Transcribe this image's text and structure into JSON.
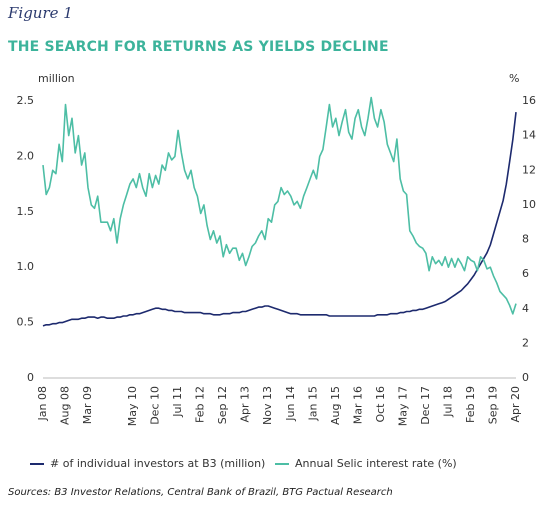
{
  "figure_label": "Figure 1",
  "chart_data": {
    "type": "line",
    "title": "THE SEARCH FOR RETURNS AS YIELDS DECLINE",
    "ylabel": "million",
    "y2label": "%",
    "source": "Sources: B3 Investor Relations, Central Bank of Brazil, BTG Pactual Research",
    "legend": "bottom",
    "categories": [
      "Jan 08",
      null,
      null,
      null,
      null,
      null,
      null,
      "Aug 08",
      null,
      null,
      null,
      null,
      null,
      null,
      "Mar 09",
      null,
      null,
      null,
      null,
      null,
      null,
      null,
      null,
      null,
      null,
      null,
      null,
      null,
      "May 10",
      null,
      null,
      null,
      null,
      null,
      null,
      "Dec 10",
      null,
      null,
      null,
      null,
      null,
      null,
      "Jul 11",
      null,
      null,
      null,
      null,
      null,
      null,
      "Feb 12",
      null,
      null,
      null,
      null,
      null,
      null,
      "Sep 12",
      null,
      null,
      null,
      null,
      null,
      null,
      "Apr 13",
      null,
      null,
      null,
      null,
      null,
      null,
      "Nov 13",
      null,
      null,
      null,
      null,
      null,
      null,
      "Jun 14",
      null,
      null,
      null,
      null,
      null,
      null,
      "Jan 15",
      null,
      null,
      null,
      null,
      null,
      null,
      "Aug 15",
      null,
      null,
      null,
      null,
      null,
      null,
      "Mar 16",
      null,
      null,
      null,
      null,
      null,
      null,
      "Oct 16",
      null,
      null,
      null,
      null,
      null,
      null,
      "May 17",
      null,
      null,
      null,
      null,
      null,
      null,
      "Dec 17",
      null,
      null,
      null,
      null,
      null,
      null,
      "Jul 18",
      null,
      null,
      null,
      null,
      null,
      null,
      "Feb 19",
      null,
      null,
      null,
      null,
      null,
      null,
      "Sep 19",
      null,
      null,
      null,
      null,
      null,
      null,
      "Apr 20"
    ],
    "ylim": [
      0,
      2.5
    ],
    "yticks": [
      0,
      0.5,
      {
        "value": 1,
        "label": "1.0"
      },
      1.5,
      {
        "value": 2,
        "label": "2.0"
      },
      2.5
    ],
    "y2lim": [
      0,
      16
    ],
    "y2ticks": [
      0,
      2,
      4,
      6,
      8,
      10,
      12,
      14,
      16
    ],
    "series": [
      {
        "name": "# of individual investors at B3 (million)",
        "color": "#1d2a6e",
        "axis": "y",
        "values": [
          0.47,
          0.48,
          0.48,
          0.49,
          0.49,
          0.5,
          0.5,
          0.51,
          0.52,
          0.53,
          0.53,
          0.53,
          0.54,
          0.54,
          0.55,
          0.55,
          0.55,
          0.54,
          0.55,
          0.55,
          0.54,
          0.54,
          0.54,
          0.55,
          0.55,
          0.56,
          0.56,
          0.57,
          0.57,
          0.58,
          0.58,
          0.59,
          0.6,
          0.61,
          0.62,
          0.63,
          0.63,
          0.62,
          0.62,
          0.61,
          0.61,
          0.6,
          0.6,
          0.6,
          0.59,
          0.59,
          0.59,
          0.59,
          0.59,
          0.59,
          0.58,
          0.58,
          0.58,
          0.57,
          0.57,
          0.57,
          0.58,
          0.58,
          0.58,
          0.59,
          0.59,
          0.59,
          0.6,
          0.6,
          0.61,
          0.62,
          0.63,
          0.64,
          0.64,
          0.65,
          0.65,
          0.64,
          0.63,
          0.62,
          0.61,
          0.6,
          0.59,
          0.58,
          0.58,
          0.58,
          0.57,
          0.57,
          0.57,
          0.57,
          0.57,
          0.57,
          0.57,
          0.57,
          0.57,
          0.56,
          0.56,
          0.56,
          0.56,
          0.56,
          0.56,
          0.56,
          0.56,
          0.56,
          0.56,
          0.56,
          0.56,
          0.56,
          0.56,
          0.56,
          0.57,
          0.57,
          0.57,
          0.57,
          0.58,
          0.58,
          0.58,
          0.59,
          0.59,
          0.6,
          0.6,
          0.61,
          0.61,
          0.62,
          0.62,
          0.63,
          0.64,
          0.65,
          0.66,
          0.67,
          0.68,
          0.69,
          0.71,
          0.73,
          0.75,
          0.77,
          0.79,
          0.82,
          0.85,
          0.89,
          0.93,
          0.98,
          1.03,
          1.08,
          1.13,
          1.2,
          1.3,
          1.4,
          1.5,
          1.6,
          1.75,
          1.95,
          2.15,
          2.4
        ]
      },
      {
        "name": "Annual  Selic interest rate (%)",
        "color": "#4dbea5",
        "axis": "y2",
        "values": [
          12.3,
          10.6,
          11.0,
          12.0,
          11.8,
          13.5,
          12.5,
          15.8,
          14.0,
          15.0,
          13.0,
          14.0,
          12.3,
          13.0,
          11.0,
          10.0,
          9.8,
          10.5,
          9.0,
          9.0,
          9.0,
          8.5,
          9.2,
          7.8,
          9.2,
          10.0,
          10.6,
          11.2,
          11.5,
          11.0,
          11.8,
          11.0,
          10.5,
          11.8,
          11.0,
          11.7,
          11.2,
          12.3,
          12.0,
          13.0,
          12.6,
          12.8,
          14.3,
          13.0,
          12.0,
          11.5,
          12.0,
          11.0,
          10.5,
          9.5,
          10.0,
          8.8,
          8.0,
          8.5,
          7.8,
          8.2,
          7.0,
          7.7,
          7.2,
          7.5,
          7.5,
          6.8,
          7.2,
          6.5,
          7.0,
          7.6,
          7.8,
          8.2,
          8.5,
          8.0,
          9.2,
          9.0,
          10.0,
          10.2,
          11.0,
          10.6,
          10.8,
          10.5,
          10.0,
          10.2,
          9.8,
          10.5,
          11.0,
          11.5,
          12.0,
          11.5,
          12.8,
          13.2,
          14.5,
          15.8,
          14.5,
          15.0,
          14.0,
          14.8,
          15.5,
          14.2,
          13.8,
          15.0,
          15.5,
          14.5,
          14.0,
          15.0,
          16.2,
          15.0,
          14.5,
          15.5,
          14.8,
          13.5,
          13.0,
          12.5,
          13.8,
          11.5,
          10.8,
          10.6,
          8.5,
          8.2,
          7.8,
          7.6,
          7.5,
          7.2,
          6.2,
          7.0,
          6.6,
          6.8,
          6.5,
          7.0,
          6.4,
          6.9,
          6.4,
          6.9,
          6.6,
          6.2,
          7.0,
          6.8,
          6.7,
          6.2,
          7.0,
          6.8,
          6.3,
          6.4,
          5.9,
          5.5,
          5.0,
          4.8,
          4.6,
          4.2,
          3.7,
          4.3
        ]
      }
    ]
  }
}
